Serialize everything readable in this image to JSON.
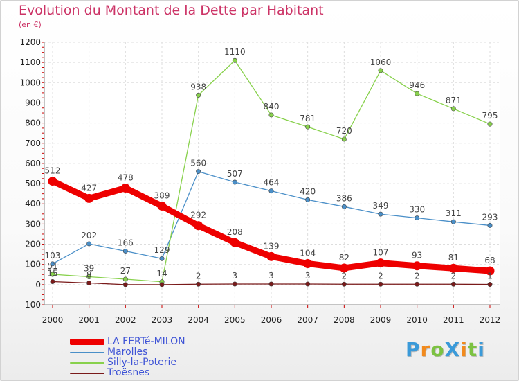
{
  "title": "Evolution du Montant de la Dette par Habitant",
  "subtitle": "(en €)",
  "logo_text": "ProXiti",
  "logo_colors": [
    "#3a9ad9",
    "#f28a1c",
    "#7cc242",
    "#3a9ad9",
    "#f28a1c",
    "#7cc242",
    "#3a9ad9"
  ],
  "chart_data": {
    "type": "line",
    "title": "Evolution du Montant de la Dette par Habitant",
    "subtitle": "(en €)",
    "xlabel": "",
    "ylabel": "",
    "x": [
      "2000",
      "2001",
      "2002",
      "2003",
      "2004",
      "2005",
      "2006",
      "2007",
      "2008",
      "2009",
      "2010",
      "2011",
      "2012"
    ],
    "ylim": [
      -100,
      1200
    ],
    "yticks": [
      -100,
      0,
      100,
      200,
      300,
      400,
      500,
      600,
      700,
      800,
      900,
      1000,
      1100,
      1200
    ],
    "grid": true,
    "legend_position": "bottom-left",
    "series": [
      {
        "name": "LA FERTé-MILON",
        "color": "#ee0000",
        "emphasis": true,
        "values": [
          512,
          427,
          478,
          389,
          292,
          208,
          139,
          104,
          82,
          107,
          93,
          81,
          68
        ],
        "labels": [
          "512",
          "427",
          "478",
          "389",
          "292",
          "208",
          "139",
          "104",
          "82",
          "107",
          "93",
          "81",
          "68"
        ]
      },
      {
        "name": "Marolles",
        "color": "#4a8fc8",
        "values": [
          103,
          202,
          166,
          129,
          560,
          507,
          464,
          420,
          386,
          349,
          330,
          311,
          293
        ],
        "labels": [
          "103",
          "202",
          "166",
          "129",
          "560",
          "507",
          "464",
          "420",
          "386",
          "349",
          "330",
          "311",
          "293"
        ]
      },
      {
        "name": "Silly-la-Poterie",
        "color": "#88d14c",
        "values": [
          51,
          39,
          27,
          14,
          938,
          1110,
          840,
          781,
          720,
          1060,
          946,
          871,
          795
        ],
        "labels": [
          "51",
          "39",
          "27",
          "14",
          "938",
          "1110",
          "840",
          "781",
          "720",
          "1060",
          "946",
          "871",
          "795"
        ]
      },
      {
        "name": "Troësnes",
        "color": "#7a1a1a",
        "values": [
          15,
          8,
          0,
          0,
          2,
          3,
          3,
          3,
          2,
          2,
          2,
          2,
          1
        ],
        "labels": [
          "15",
          "8",
          "",
          "",
          "2",
          "3",
          "3",
          "3",
          "2",
          "2",
          "2",
          "2",
          "1"
        ]
      }
    ]
  }
}
